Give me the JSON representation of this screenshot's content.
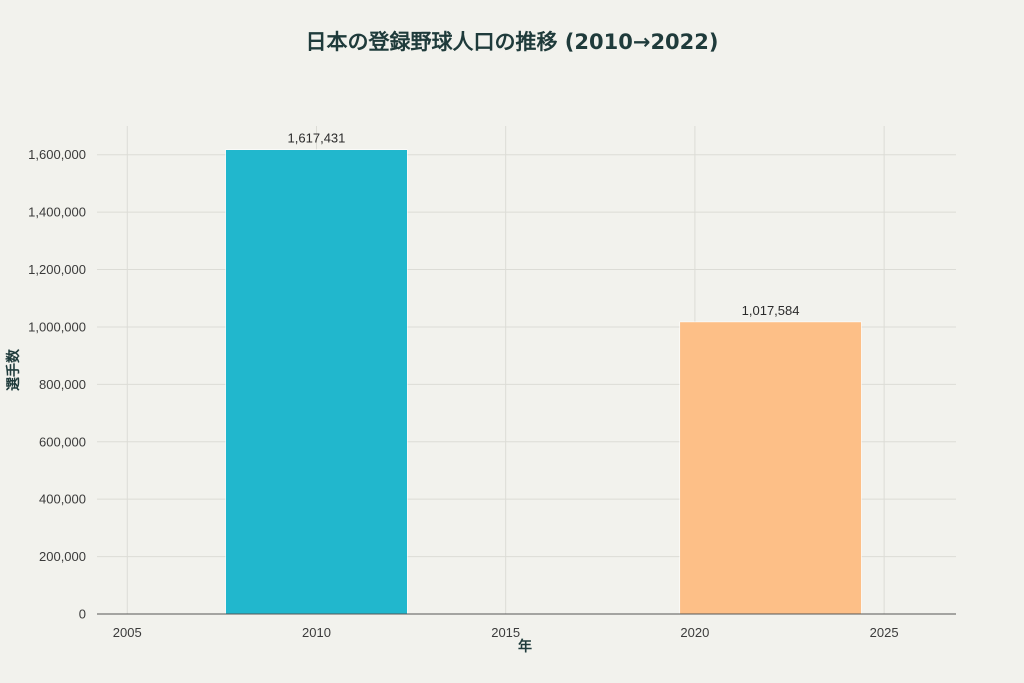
{
  "chart_data": {
    "type": "bar",
    "title": "日本の登録野球人口の推移 (2010→2022)",
    "xlabel": "年",
    "ylabel": "選手数",
    "x": [
      2010,
      2022
    ],
    "values": [
      1617431,
      1017584
    ],
    "value_labels": [
      "1,617,431",
      "1,017,584"
    ],
    "bar_colors": [
      "#21b7cd",
      "#fdbf87"
    ],
    "xlim": [
      2004.2,
      2026.9
    ],
    "ylim": [
      0,
      1700000
    ],
    "xticks": [
      2005,
      2010,
      2015,
      2020,
      2025
    ],
    "xtick_labels": [
      "2005",
      "2010",
      "2015",
      "2020",
      "2025"
    ],
    "yticks": [
      0,
      200000,
      400000,
      600000,
      800000,
      1000000,
      1200000,
      1400000,
      1600000
    ],
    "ytick_labels": [
      "0",
      "200,000",
      "400,000",
      "600,000",
      "800,000",
      "1,000,000",
      "1,200,000",
      "1,400,000",
      "1,600,000"
    ],
    "grid": true,
    "legend": "none"
  }
}
